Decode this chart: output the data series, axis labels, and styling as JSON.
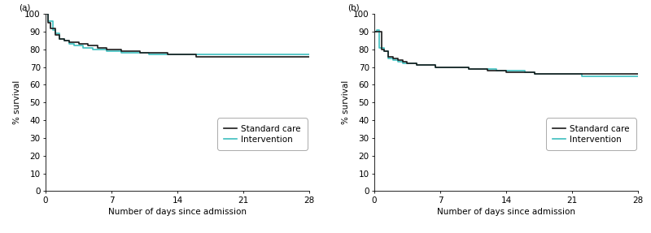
{
  "panel_a": {
    "label": "(a)",
    "standard_care": {
      "x": [
        0,
        0.3,
        0.5,
        1,
        1.5,
        2,
        2.5,
        3,
        3.5,
        4,
        4.5,
        5,
        5.5,
        6,
        6.5,
        7,
        7.5,
        8,
        9,
        10,
        11,
        12,
        13,
        14,
        15,
        16,
        17,
        18,
        19,
        20,
        21,
        22,
        23,
        24,
        25,
        26,
        27,
        28
      ],
      "y": [
        100,
        95,
        92,
        88,
        86,
        85,
        84,
        84,
        83,
        83,
        82,
        82,
        81,
        81,
        80,
        80,
        80,
        79,
        79,
        78,
        78,
        78,
        77,
        77,
        77,
        76,
        76,
        76,
        76,
        76,
        76,
        76,
        76,
        76,
        76,
        76,
        76,
        76
      ]
    },
    "intervention": {
      "x": [
        0,
        0.3,
        0.8,
        1,
        1.5,
        2,
        2.5,
        3,
        3.5,
        4,
        4.5,
        5,
        5.5,
        6,
        6.5,
        7,
        7.5,
        8,
        9,
        10,
        11,
        12,
        13,
        14,
        15,
        16,
        17,
        18,
        19,
        20,
        21,
        22,
        23,
        24,
        25,
        26,
        27,
        28
      ],
      "y": [
        100,
        96,
        91,
        89,
        86,
        85,
        83,
        82,
        82,
        81,
        81,
        80,
        80,
        80,
        79,
        79,
        79,
        78,
        78,
        78,
        77,
        77,
        77,
        77,
        77,
        77,
        77,
        77,
        77,
        77,
        77,
        77,
        77,
        77,
        77,
        77,
        77,
        77
      ]
    },
    "ylabel": "% survival",
    "xlabel": "Number of days since admission",
    "ylim": [
      0,
      100
    ],
    "xlim": [
      0,
      28
    ],
    "yticks": [
      0,
      10,
      20,
      30,
      40,
      50,
      60,
      70,
      80,
      90,
      100
    ],
    "xticks": [
      0,
      7,
      14,
      21,
      28
    ]
  },
  "panel_b": {
    "label": "(b)",
    "standard_care": {
      "x": [
        0,
        0.3,
        0.8,
        1,
        1.5,
        2,
        2.5,
        3,
        3.5,
        4,
        4.5,
        5,
        5.5,
        6,
        6.5,
        7,
        7.5,
        8,
        9,
        10,
        11,
        12,
        13,
        14,
        15,
        16,
        17,
        18,
        19,
        20,
        21,
        22,
        23,
        24,
        25,
        26,
        27,
        28
      ],
      "y": [
        90,
        90,
        80,
        79,
        76,
        75,
        74,
        73,
        72,
        72,
        71,
        71,
        71,
        71,
        70,
        70,
        70,
        70,
        70,
        69,
        69,
        68,
        68,
        67,
        67,
        67,
        66,
        66,
        66,
        66,
        66,
        66,
        66,
        66,
        66,
        66,
        66,
        66
      ]
    },
    "intervention": {
      "x": [
        0,
        0.3,
        0.5,
        1,
        1.5,
        2,
        2.5,
        3,
        3.5,
        4,
        4.5,
        5,
        5.5,
        6,
        6.5,
        7,
        7.5,
        8,
        9,
        10,
        11,
        12,
        13,
        14,
        15,
        16,
        17,
        18,
        19,
        20,
        21,
        22,
        23,
        24,
        25,
        26,
        27,
        28
      ],
      "y": [
        90,
        91,
        81,
        79,
        75,
        74,
        73,
        72,
        72,
        72,
        71,
        71,
        71,
        71,
        70,
        70,
        70,
        70,
        70,
        69,
        69,
        69,
        68,
        68,
        68,
        67,
        66,
        66,
        66,
        66,
        66,
        65,
        65,
        65,
        65,
        65,
        65,
        65
      ]
    },
    "ylabel": "% survival",
    "xlabel": "Number of days since admission",
    "ylim": [
      0,
      100
    ],
    "xlim": [
      0,
      28
    ],
    "yticks": [
      0,
      10,
      20,
      30,
      40,
      50,
      60,
      70,
      80,
      90,
      100
    ],
    "xticks": [
      0,
      7,
      14,
      21,
      28
    ]
  },
  "standard_care_color": "#1a1a1a",
  "intervention_color": "#3dbfbf",
  "line_width": 1.2,
  "legend_labels": [
    "Standard care",
    "Intervention"
  ],
  "background_color": "#ffffff",
  "font_size": 7.5
}
